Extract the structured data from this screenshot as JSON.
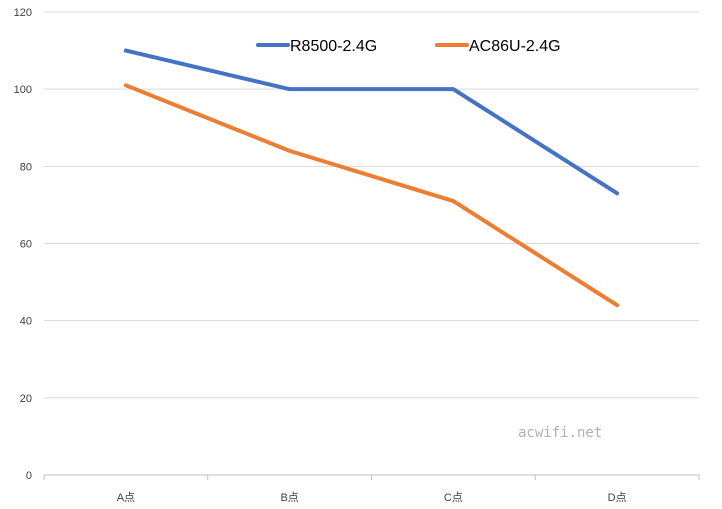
{
  "chart_data": {
    "type": "line",
    "categories": [
      "A点",
      "B点",
      "C点",
      "D点"
    ],
    "series": [
      {
        "name": "R8500-2.4G",
        "values": [
          110,
          100,
          100,
          73
        ],
        "color": "#4472C4"
      },
      {
        "name": "AC86U-2.4G",
        "values": [
          101,
          84,
          71,
          44
        ],
        "color": "#ED7D31"
      }
    ],
    "ylim": [
      0,
      120
    ],
    "yticks": [
      0,
      20,
      40,
      60,
      80,
      100,
      120
    ],
    "grid": true,
    "legend_position": "top",
    "watermark": "acwifi.net"
  }
}
